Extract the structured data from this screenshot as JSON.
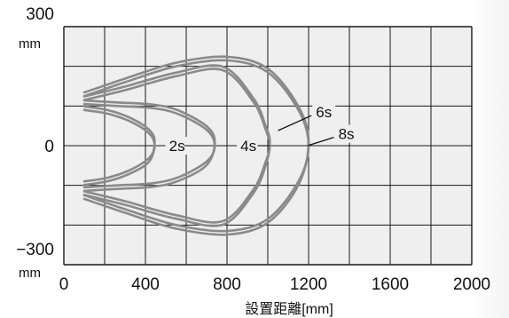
{
  "chart_data": {
    "type": "line",
    "x_ticks": [
      "0",
      "400",
      "800",
      "1200",
      "1600",
      "2000"
    ],
    "y_ticks": [
      "300",
      "0",
      "−300"
    ],
    "y_tick_values": [
      300,
      0,
      -300
    ],
    "y_unit": "mm",
    "xlabel": "設置距離[mm]",
    "xlim": [
      0,
      2000
    ],
    "ylim": [
      -300,
      300
    ],
    "grid": true,
    "curve_color": "#8a8a8a",
    "grid_color": "#1a1a1a",
    "plot_bg": "#efefef",
    "series": [
      {
        "name": "2s",
        "label_at": [
          555,
          0
        ],
        "points": [
          [
            100,
            -90
          ],
          [
            220,
            -80
          ],
          [
            330,
            -60
          ],
          [
            420,
            -30
          ],
          [
            445,
            0
          ],
          [
            420,
            30
          ],
          [
            330,
            60
          ],
          [
            220,
            80
          ],
          [
            100,
            90
          ]
        ],
        "offsets": [
          0,
          10
        ]
      },
      {
        "name": "4s",
        "label_at": [
          905,
          0
        ],
        "points": [
          [
            100,
            -105
          ],
          [
            260,
            -100
          ],
          [
            430,
            -95
          ],
          [
            560,
            -80
          ],
          [
            700,
            -40
          ],
          [
            740,
            0
          ],
          [
            700,
            40
          ],
          [
            560,
            80
          ],
          [
            430,
            95
          ],
          [
            260,
            100
          ],
          [
            100,
            105
          ]
        ],
        "offsets": [
          0,
          10
        ]
      },
      {
        "name": "6s",
        "label_at": [
          1275,
          85
        ],
        "leader_to": [
          1050,
          38
        ],
        "points": [
          [
            100,
            -115
          ],
          [
            300,
            -140
          ],
          [
            550,
            -175
          ],
          [
            780,
            -190
          ],
          [
            930,
            -110
          ],
          [
            990,
            -40
          ],
          [
            1010,
            0
          ],
          [
            990,
            40
          ],
          [
            930,
            110
          ],
          [
            780,
            190
          ],
          [
            550,
            175
          ],
          [
            300,
            140
          ],
          [
            100,
            115
          ]
        ],
        "offsets": [
          0,
          10
        ]
      },
      {
        "name": "8s",
        "label_at": [
          1385,
          30
        ],
        "leader_to": [
          1195,
          0
        ],
        "points": [
          [
            100,
            -125
          ],
          [
            300,
            -160
          ],
          [
            550,
            -200
          ],
          [
            800,
            -215
          ],
          [
            1000,
            -185
          ],
          [
            1150,
            -90
          ],
          [
            1200,
            0
          ],
          [
            1150,
            90
          ],
          [
            1000,
            185
          ],
          [
            800,
            215
          ],
          [
            550,
            200
          ],
          [
            300,
            160
          ],
          [
            100,
            125
          ]
        ],
        "offsets": [
          0,
          10
        ]
      }
    ]
  }
}
